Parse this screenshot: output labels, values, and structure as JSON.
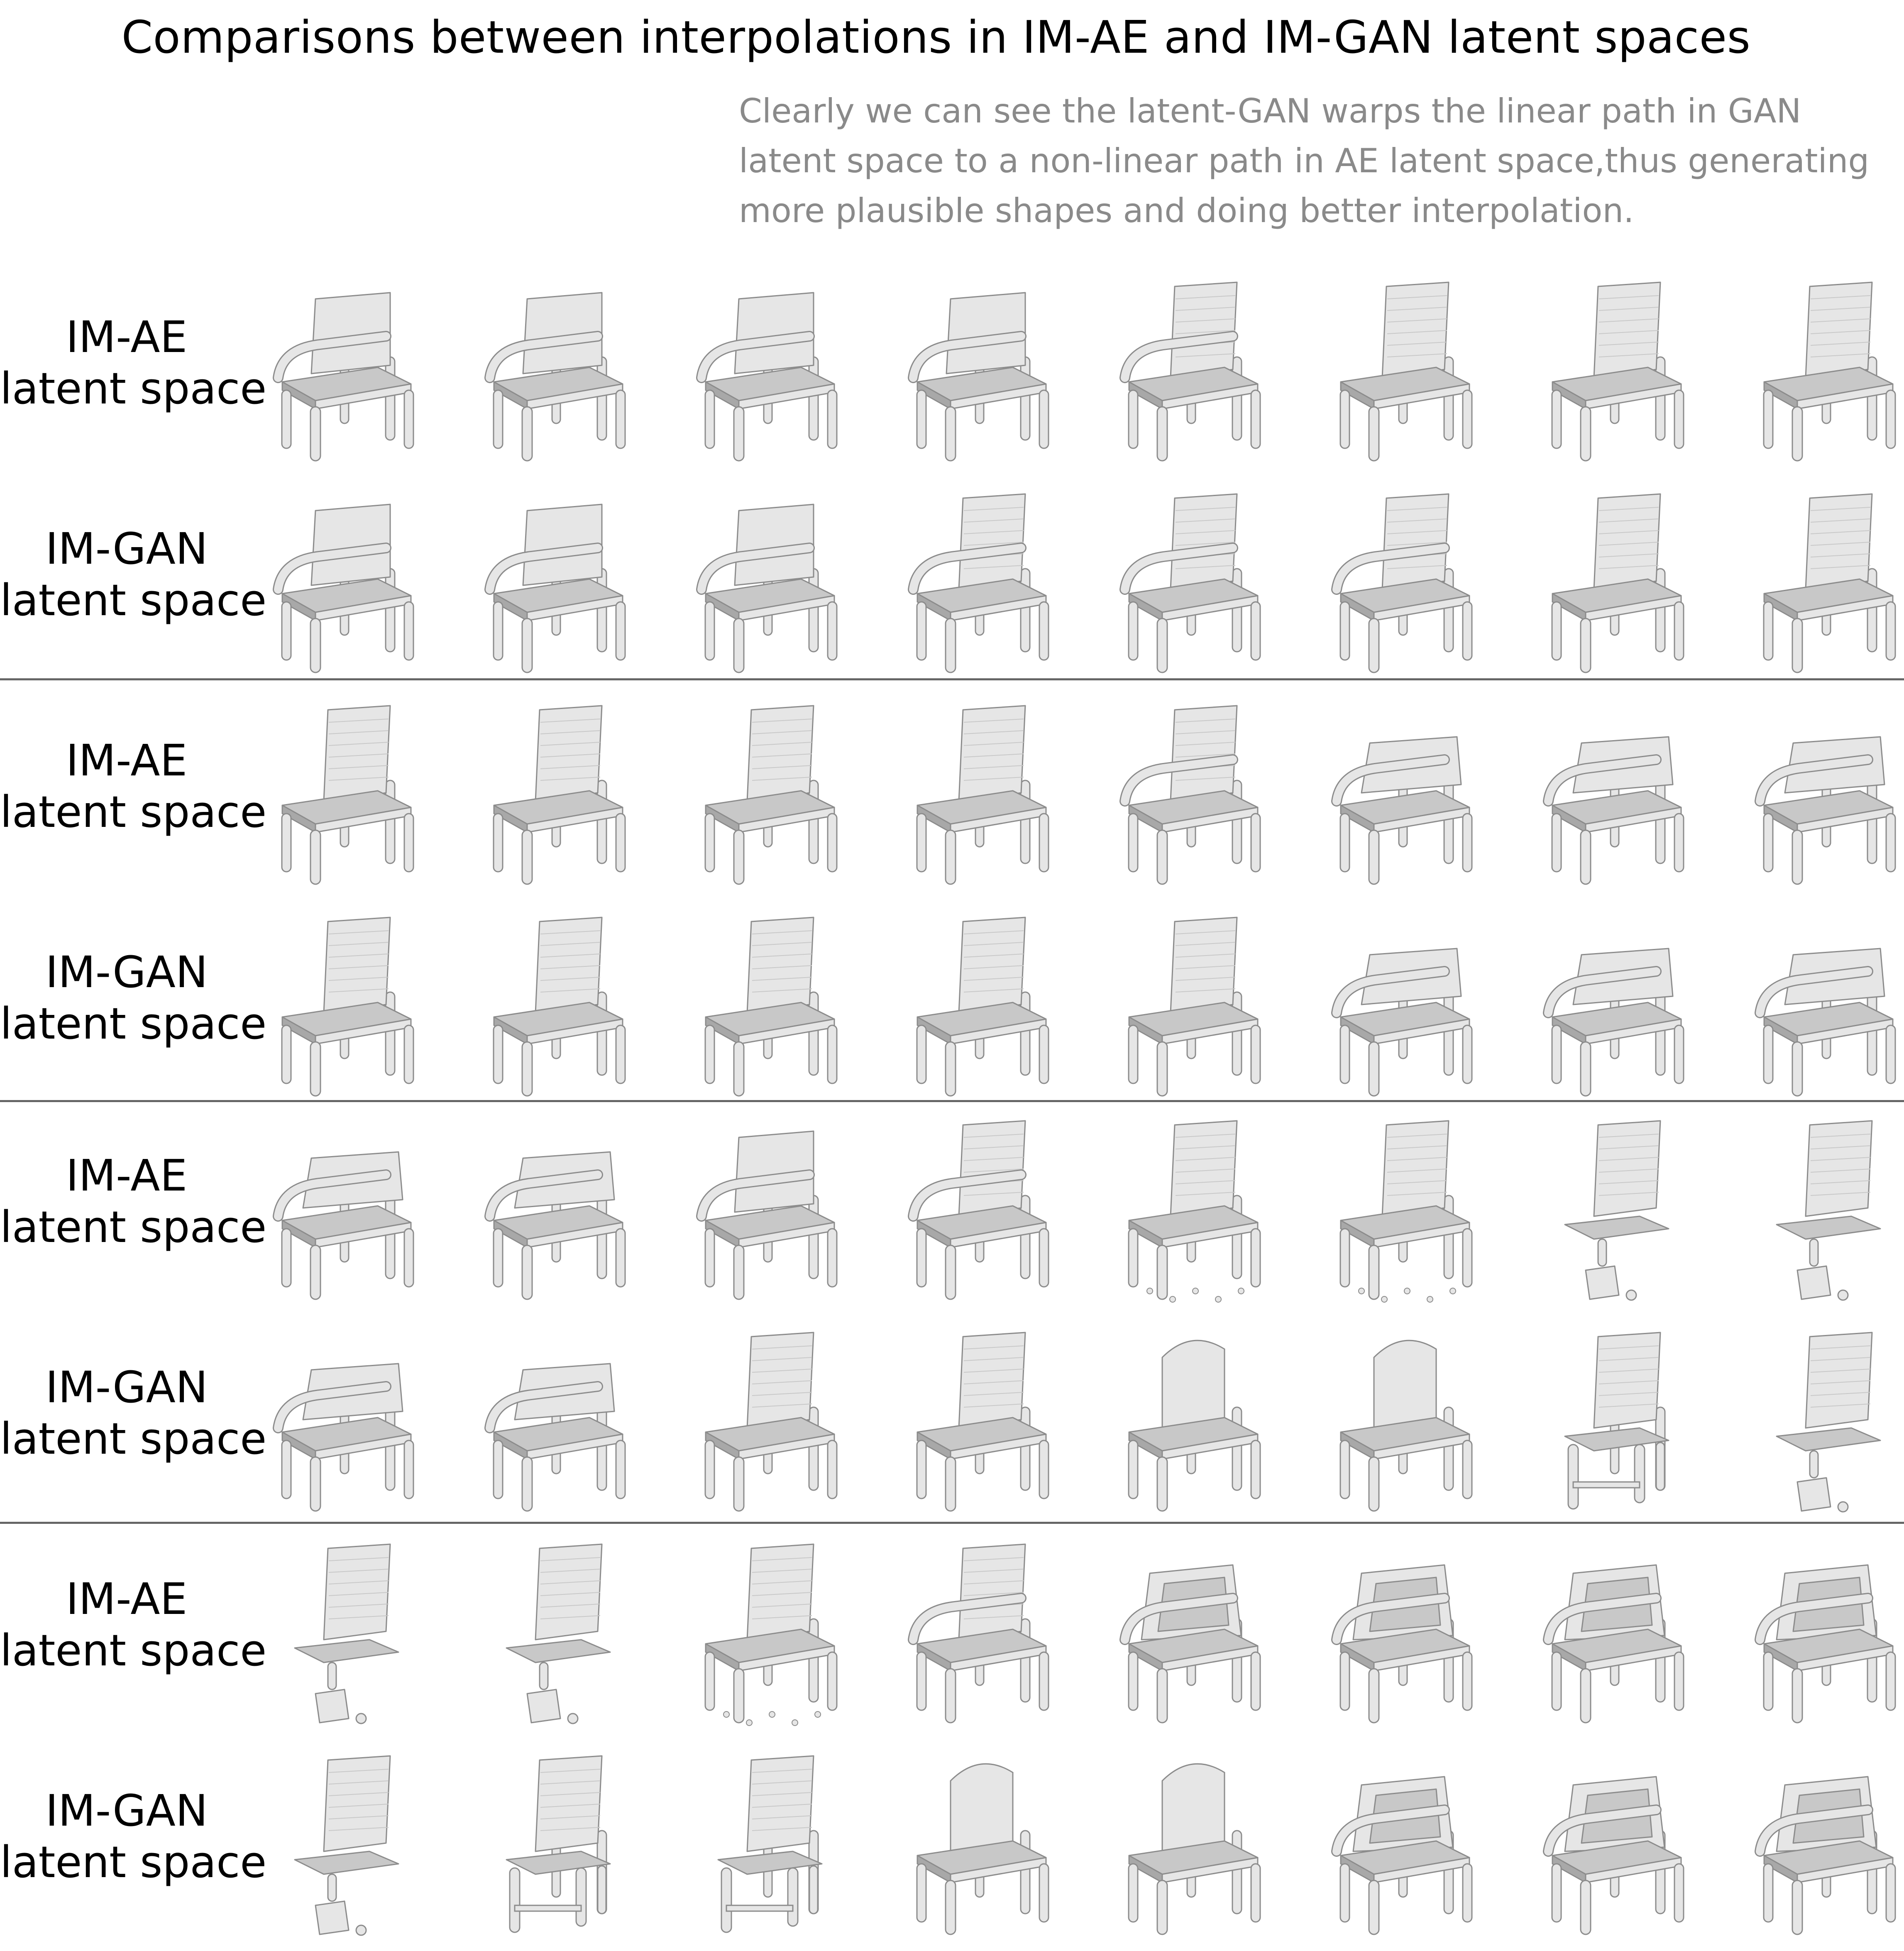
{
  "title": "Comparisons between interpolations in IM-AE and IM-GAN latent spaces",
  "caption": {
    "lines": [
      "Clearly we can see the latent-GAN warps the linear path in GAN",
      "latent space to a non-linear path in AE latent space,thus generating",
      "more plausible shapes and doing better interpolation."
    ]
  },
  "row_labels": {
    "ae": [
      "IM-AE",
      "latent space"
    ],
    "gan": [
      "IM-GAN",
      "latent space"
    ]
  },
  "colors": {
    "shape_light": "#e6e6e6",
    "shape_mid": "#c8c8c8",
    "shape_dark": "#a8a8a8",
    "outline": "#8c8c8c",
    "separator": "#666666"
  },
  "blocks": [
    {
      "ae": [
        "armchair-open",
        "armchair-open",
        "armchair-open",
        "armchair-open",
        "chair-tall-arm",
        "chair-tall",
        "chair-tall",
        "chair-tall"
      ],
      "gan": [
        "armchair-open",
        "armchair-open",
        "armchair-open",
        "chair-tall-arm",
        "chair-tall-arm",
        "chair-tall-arm",
        "chair-tall",
        "chair-tall"
      ]
    },
    {
      "ae": [
        "chair-tall",
        "chair-tall",
        "chair-tall",
        "chair-tall",
        "chair-tall-arm",
        "armchair-sofa",
        "armchair-sofa",
        "armchair-sofa"
      ],
      "gan": [
        "chair-tall",
        "chair-tall",
        "chair-tall",
        "chair-tall",
        "chair-tall",
        "armchair-sofa",
        "armchair-sofa",
        "armchair-sofa"
      ]
    },
    {
      "ae": [
        "armchair-sofa",
        "armchair-sofa",
        "armchair-open",
        "chair-tall-arm",
        "chair-broken",
        "chair-broken",
        "stool-broken",
        "stool-broken"
      ],
      "gan": [
        "armchair-sofa",
        "armchair-sofa",
        "chair-tall",
        "chair-tall",
        "chair-round",
        "chair-round",
        "bar-stool",
        "stool-broken"
      ]
    },
    {
      "ae": [
        "stool-broken",
        "stool-broken",
        "chair-broken",
        "chair-tall-arm",
        "armchair-box",
        "armchair-box",
        "armchair-box",
        "armchair-box"
      ],
      "gan": [
        "stool-broken",
        "bar-stool",
        "bar-stool",
        "chair-round",
        "chair-round",
        "armchair-box",
        "armchair-box",
        "armchair-box"
      ]
    }
  ]
}
